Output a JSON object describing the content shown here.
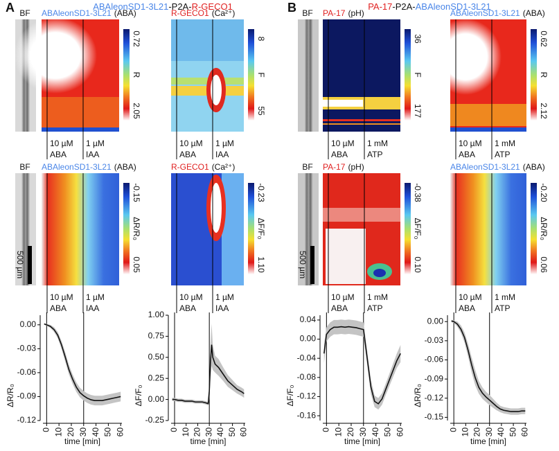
{
  "panels": [
    {
      "label": "A",
      "construct": [
        {
          "text": "ABAleonSD1-3L21",
          "color": "#4a86e8"
        },
        {
          "text": "-P2A-",
          "color": "#111111"
        },
        {
          "text": "R-GECO1",
          "color": "#e02020"
        }
      ],
      "treatments": [
        {
          "dose": "10 µM",
          "drug": "ABA"
        },
        {
          "dose": "1 µM",
          "drug": "IAA"
        }
      ],
      "scale_bar": "500 µm",
      "images": [
        {
          "bf": "BF",
          "sensor": "ABAleonSD1-3L21",
          "sensor_color": "#4a86e8",
          "reporter": "(ABA)",
          "colorbar": {
            "top": "0.72",
            "label": "R",
            "bottom": "2.05"
          }
        },
        {
          "sensor": "R-GECO1",
          "sensor_color": "#e02020",
          "reporter": "(Ca²⁺)",
          "colorbar": {
            "top": "8",
            "label": "F",
            "bottom": "55"
          }
        },
        {
          "bf": "BF",
          "sensor": "ABAleonSD1-3L21",
          "sensor_color": "#4a86e8",
          "reporter": "(ABA)",
          "colorbar": {
            "top": "-0.15",
            "label": "ΔR/R₀",
            "bottom": "0.05"
          }
        },
        {
          "sensor": "R-GECO1",
          "sensor_color": "#e02020",
          "reporter": "(Ca²⁺)",
          "colorbar": {
            "top": "-0.23",
            "label": "ΔF/F₀",
            "bottom": "1.10"
          }
        }
      ]
    },
    {
      "label": "B",
      "construct": [
        {
          "text": "PA-17",
          "color": "#e02020"
        },
        {
          "text": "-P2A-",
          "color": "#111111"
        },
        {
          "text": "ABAleonSD1-3L21",
          "color": "#4a86e8"
        }
      ],
      "treatments": [
        {
          "dose": "10 µM",
          "drug": "ABA"
        },
        {
          "dose": "1 mM",
          "drug": "ATP"
        }
      ],
      "scale_bar": "500 µm",
      "images": [
        {
          "bf": "BF",
          "sensor": "PA-17",
          "sensor_color": "#e02020",
          "reporter": "(pH)",
          "colorbar": {
            "top": "36",
            "label": "F",
            "bottom": "177"
          }
        },
        {
          "sensor": "ABAleonSD1-3L21",
          "sensor_color": "#4a86e8",
          "reporter": "(ABA)",
          "colorbar": {
            "top": "0.62",
            "label": "R",
            "bottom": "2.12"
          }
        },
        {
          "bf": "BF",
          "sensor": "PA-17",
          "sensor_color": "#e02020",
          "reporter": "(pH)",
          "colorbar": {
            "top": "-0.38",
            "label": "ΔF/F₀",
            "bottom": "0.10"
          }
        },
        {
          "sensor": "ABAleonSD1-3L21",
          "sensor_color": "#4a86e8",
          "reporter": "(ABA)",
          "colorbar": {
            "top": "-0.20",
            "label": "ΔR/R₀",
            "bottom": "0.06"
          }
        }
      ]
    }
  ],
  "chart_data": [
    {
      "type": "line",
      "ylabel": "ΔR/R₀",
      "xlabel": "time [min]",
      "color": "#111111",
      "band_color": "#c4c4c4",
      "x": [
        -2,
        0,
        3,
        6,
        9,
        12,
        15,
        18,
        21,
        24,
        27,
        30,
        33,
        36,
        39,
        42,
        45,
        48,
        51,
        54,
        57,
        60
      ],
      "values": [
        0.001,
        0,
        -0.002,
        -0.006,
        -0.013,
        -0.025,
        -0.04,
        -0.056,
        -0.068,
        -0.078,
        -0.085,
        -0.089,
        -0.092,
        -0.094,
        -0.095,
        -0.095,
        -0.095,
        -0.094,
        -0.093,
        -0.092,
        -0.091,
        -0.09
      ],
      "error": [
        0.001,
        0.001,
        0.002,
        0.003,
        0.004,
        0.005,
        0.006,
        0.006,
        0.006,
        0.006,
        0.006,
        0.006,
        0.006,
        0.006,
        0.006,
        0.006,
        0.006,
        0.006,
        0.006,
        0.006,
        0.006,
        0.006
      ],
      "xlim": [
        -3,
        61
      ],
      "ylim": [
        -0.12,
        0.012
      ],
      "xticks": [
        0,
        10,
        20,
        30,
        40,
        50,
        60
      ],
      "yticks": [
        {
          "value": 0,
          "label": "0.00"
        },
        -0.03,
        -0.06,
        -0.09,
        -0.12
      ],
      "vlines": [
        0,
        30
      ]
    },
    {
      "type": "line",
      "ylabel": "ΔF/F₀",
      "xlabel": "time [min]",
      "color": "#111111",
      "band_color": "#c4c4c4",
      "x": [
        -2,
        0,
        3,
        6,
        9,
        12,
        15,
        18,
        21,
        24,
        27,
        29,
        30,
        31,
        32,
        33,
        35,
        38,
        42,
        46,
        50,
        54,
        58,
        60
      ],
      "values": [
        0,
        0,
        -0.01,
        -0.01,
        -0.02,
        -0.02,
        -0.02,
        -0.03,
        -0.03,
        -0.03,
        -0.04,
        -0.05,
        0.1,
        0.45,
        0.65,
        0.5,
        0.42,
        0.38,
        0.3,
        0.22,
        0.17,
        0.12,
        0.09,
        0.07
      ],
      "error": [
        0.02,
        0.02,
        0.02,
        0.02,
        0.02,
        0.02,
        0.02,
        0.02,
        0.02,
        0.02,
        0.02,
        0.02,
        0.1,
        0.2,
        0.25,
        0.15,
        0.1,
        0.1,
        0.08,
        0.07,
        0.06,
        0.05,
        0.05,
        0.05
      ],
      "xlim": [
        -3,
        61
      ],
      "ylim": [
        -0.25,
        1
      ],
      "xticks": [
        0,
        10,
        20,
        30,
        40,
        50,
        60
      ],
      "yticks": [
        -0.25,
        {
          "value": 0,
          "label": "0.00"
        },
        0.25,
        {
          "value": 0.5,
          "label": "0.50"
        },
        0.75,
        {
          "value": 1,
          "label": "1.00"
        }
      ],
      "vlines": [
        0,
        30
      ]
    },
    {
      "type": "line",
      "ylabel": "ΔF/F₀",
      "xlabel": "time [min]",
      "color": "#111111",
      "band_color": "#c4c4c4",
      "x": [
        -2,
        0,
        3,
        6,
        9,
        12,
        15,
        18,
        21,
        24,
        27,
        30,
        33,
        36,
        39,
        42,
        45,
        48,
        51,
        54,
        57,
        60
      ],
      "values": [
        -0.03,
        0.01,
        0.02,
        0.025,
        0.025,
        0.026,
        0.025,
        0.026,
        0.025,
        0.024,
        0.022,
        0.02,
        -0.04,
        -0.1,
        -0.13,
        -0.135,
        -0.125,
        -0.105,
        -0.085,
        -0.065,
        -0.045,
        -0.03
      ],
      "error": [
        0.02,
        0.015,
        0.015,
        0.015,
        0.015,
        0.015,
        0.015,
        0.015,
        0.015,
        0.015,
        0.015,
        0.015,
        0.015,
        0.015,
        0.012,
        0.012,
        0.012,
        0.012,
        0.013,
        0.014,
        0.015,
        0.018
      ],
      "xlim": [
        -3,
        61
      ],
      "ylim": [
        -0.17,
        0.05
      ],
      "xticks": [
        0,
        10,
        20,
        30,
        40,
        50,
        60
      ],
      "yticks": [
        0.04,
        {
          "value": 0,
          "label": "0.00"
        },
        -0.04,
        -0.08,
        -0.12,
        -0.16
      ],
      "vlines": [
        0,
        30
      ]
    },
    {
      "type": "line",
      "ylabel": "ΔR/R₀",
      "xlabel": "time [min]",
      "color": "#111111",
      "band_color": "#c4c4c4",
      "x": [
        -2,
        0,
        3,
        6,
        9,
        12,
        15,
        18,
        21,
        24,
        27,
        30,
        33,
        36,
        39,
        42,
        45,
        48,
        51,
        54,
        57,
        60
      ],
      "values": [
        0.001,
        0,
        -0.004,
        -0.012,
        -0.025,
        -0.045,
        -0.068,
        -0.088,
        -0.103,
        -0.112,
        -0.118,
        -0.123,
        -0.128,
        -0.133,
        -0.137,
        -0.139,
        -0.14,
        -0.141,
        -0.141,
        -0.141,
        -0.14,
        -0.14
      ],
      "error": [
        0.002,
        0.002,
        0.004,
        0.006,
        0.008,
        0.01,
        0.012,
        0.012,
        0.01,
        0.009,
        0.008,
        0.008,
        0.007,
        0.006,
        0.005,
        0.005,
        0.005,
        0.005,
        0.005,
        0.005,
        0.005,
        0.005
      ],
      "xlim": [
        -3,
        61
      ],
      "ylim": [
        -0.155,
        0.01
      ],
      "xticks": [
        0,
        10,
        20,
        30,
        40,
        50,
        60
      ],
      "yticks": [
        {
          "value": 0,
          "label": "0.00"
        },
        -0.03,
        -0.06,
        -0.09,
        -0.12,
        -0.15
      ],
      "vlines": [
        0,
        30
      ]
    }
  ]
}
